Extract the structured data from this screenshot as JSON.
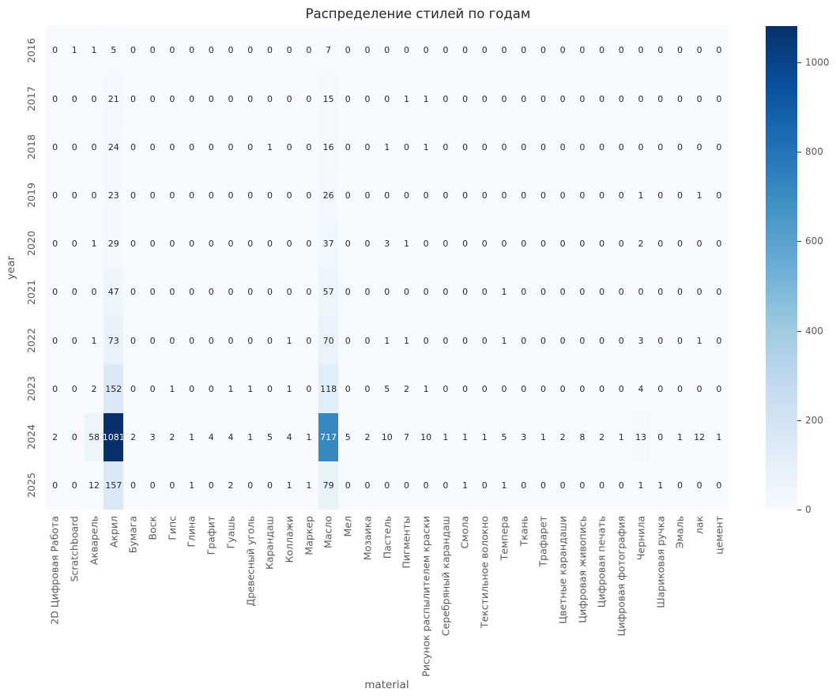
{
  "chart_data": {
    "type": "heatmap",
    "title": "Распределение стилей по годам",
    "xlabel": "material",
    "ylabel": "year",
    "colormap": "Blues",
    "vmin": 0,
    "vmax": 1081,
    "grid": false,
    "legend_position": "right-colorbar",
    "colorbar_ticks": [
      0,
      200,
      400,
      600,
      800,
      1000
    ],
    "rows": [
      "2016",
      "2017",
      "2018",
      "2019",
      "2020",
      "2021",
      "2022",
      "2023",
      "2024",
      "2025"
    ],
    "columns": [
      "2D Цифровая Работа",
      "Scratchboard",
      "Акварель",
      "Акрил",
      "Бумага",
      "Воск",
      "Гипс",
      "Глина",
      "Графит",
      "Гуашь",
      "Древесный уголь",
      "Карандаш",
      "Коллажи",
      "Маркер",
      "Масло",
      "Мел",
      "Мозаика",
      "Пастель",
      "Пигменты",
      "Рисунок распылителем краски",
      "Серебряный карандаш",
      "Смола",
      "Текстильное волокно",
      "Темпера",
      "Ткань",
      "Трафарет",
      "Цветные карандаши",
      "Цифровая живопись",
      "Цифровая печать",
      "Цифровая фотография",
      "Чернила",
      "Шариковая ручка",
      "Эмаль",
      "лак",
      "цемент"
    ],
    "values": [
      [
        0,
        1,
        1,
        5,
        0,
        0,
        0,
        0,
        0,
        0,
        0,
        0,
        0,
        0,
        7,
        0,
        0,
        0,
        0,
        0,
        0,
        0,
        0,
        0,
        0,
        0,
        0,
        0,
        0,
        0,
        0,
        0,
        0,
        0,
        0
      ],
      [
        0,
        0,
        0,
        21,
        0,
        0,
        0,
        0,
        0,
        0,
        0,
        0,
        0,
        0,
        15,
        0,
        0,
        0,
        1,
        1,
        0,
        0,
        0,
        0,
        0,
        0,
        0,
        0,
        0,
        0,
        0,
        0,
        0,
        0,
        0
      ],
      [
        0,
        0,
        0,
        24,
        0,
        0,
        0,
        0,
        0,
        0,
        0,
        1,
        0,
        0,
        16,
        0,
        0,
        1,
        0,
        1,
        0,
        0,
        0,
        0,
        0,
        0,
        0,
        0,
        0,
        0,
        0,
        0,
        0,
        0,
        0
      ],
      [
        0,
        0,
        0,
        23,
        0,
        0,
        0,
        0,
        0,
        0,
        0,
        0,
        0,
        0,
        26,
        0,
        0,
        0,
        0,
        0,
        0,
        0,
        0,
        0,
        0,
        0,
        0,
        0,
        0,
        0,
        1,
        0,
        0,
        1,
        0
      ],
      [
        0,
        0,
        1,
        29,
        0,
        0,
        0,
        0,
        0,
        0,
        0,
        0,
        0,
        0,
        37,
        0,
        0,
        3,
        1,
        0,
        0,
        0,
        0,
        0,
        0,
        0,
        0,
        0,
        0,
        0,
        2,
        0,
        0,
        0,
        0
      ],
      [
        0,
        0,
        0,
        47,
        0,
        0,
        0,
        0,
        0,
        0,
        0,
        0,
        0,
        0,
        57,
        0,
        0,
        0,
        0,
        0,
        0,
        0,
        0,
        1,
        0,
        0,
        0,
        0,
        0,
        0,
        0,
        0,
        0,
        0,
        0
      ],
      [
        0,
        0,
        1,
        73,
        0,
        0,
        0,
        0,
        0,
        0,
        0,
        0,
        1,
        0,
        70,
        0,
        0,
        1,
        1,
        0,
        0,
        0,
        0,
        1,
        0,
        0,
        0,
        0,
        0,
        0,
        3,
        0,
        0,
        1,
        0
      ],
      [
        0,
        0,
        2,
        152,
        0,
        0,
        1,
        0,
        0,
        1,
        1,
        0,
        1,
        0,
        118,
        0,
        0,
        5,
        2,
        1,
        0,
        0,
        0,
        0,
        0,
        0,
        0,
        0,
        0,
        0,
        4,
        0,
        0,
        0,
        0
      ],
      [
        2,
        0,
        58,
        1081,
        2,
        3,
        2,
        1,
        4,
        4,
        1,
        5,
        4,
        1,
        717,
        5,
        2,
        10,
        7,
        10,
        1,
        1,
        1,
        5,
        3,
        1,
        2,
        8,
        2,
        1,
        13,
        0,
        1,
        12,
        1
      ],
      [
        0,
        0,
        12,
        157,
        0,
        0,
        0,
        1,
        0,
        2,
        0,
        0,
        1,
        1,
        79,
        0,
        0,
        0,
        0,
        0,
        0,
        1,
        0,
        1,
        0,
        0,
        0,
        0,
        0,
        0,
        1,
        1,
        0,
        0,
        0
      ]
    ]
  }
}
